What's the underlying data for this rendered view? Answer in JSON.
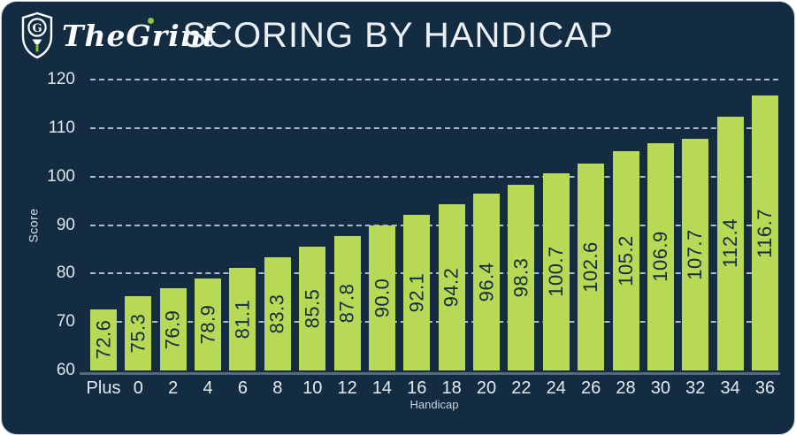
{
  "header": {
    "logo_text": "TheGrint",
    "title": "SCORING BY HANDICAP"
  },
  "colors": {
    "background": "#132c42",
    "bar": "#b7d956",
    "accent_green": "#8cc63e",
    "grid": "#c8d5e0",
    "baseline": "#566a7e",
    "text_light": "#ebf0f4"
  },
  "chart_data": {
    "type": "bar",
    "title": "SCORING BY HANDICAP",
    "xlabel": "Handicap",
    "ylabel": "Score",
    "categories": [
      "Plus",
      "0",
      "2",
      "4",
      "6",
      "8",
      "10",
      "12",
      "14",
      "16",
      "18",
      "20",
      "22",
      "24",
      "26",
      "28",
      "30",
      "32",
      "34",
      "36"
    ],
    "values": [
      72.6,
      75.3,
      76.9,
      78.9,
      81.1,
      83.3,
      85.5,
      87.8,
      90.0,
      92.1,
      94.2,
      96.4,
      98.3,
      100.7,
      102.6,
      105.2,
      106.9,
      107.7,
      112.4,
      116.7
    ],
    "ylim": [
      60,
      120
    ],
    "yticks": [
      120,
      110,
      100,
      90,
      80,
      70,
      60
    ],
    "grid": "horizontal dashed",
    "legend": "none",
    "value_labels": "one decimal, rotated 90deg, centered inside bars"
  }
}
